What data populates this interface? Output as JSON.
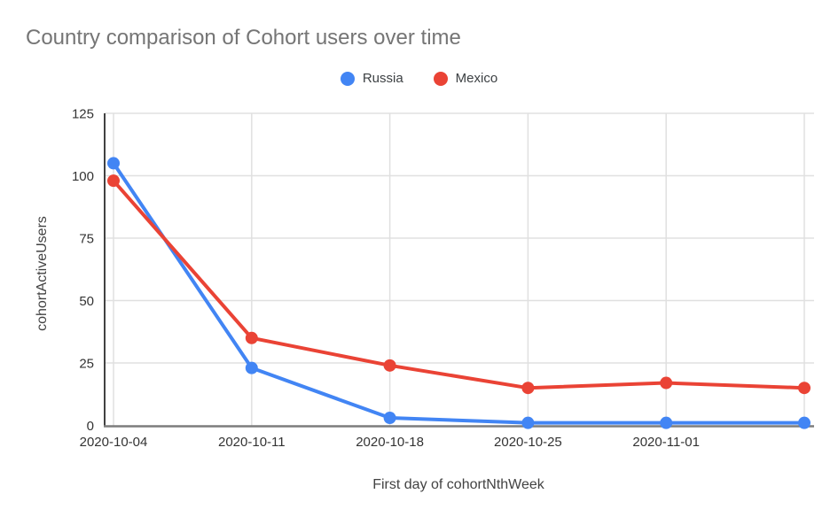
{
  "chart_data": {
    "type": "line",
    "title": "Country comparison of Cohort users over time",
    "xlabel": "First day of cohortNthWeek",
    "ylabel": "cohortActiveUsers",
    "x_tick_labels": [
      "2020-10-04",
      "2020-10-11",
      "2020-10-18",
      "2020-10-25",
      "2020-11-01",
      ""
    ],
    "series": [
      {
        "name": "Russia",
        "color": "#4285f4",
        "values": [
          105,
          23,
          3,
          1,
          1,
          1
        ]
      },
      {
        "name": "Mexico",
        "color": "#ea4335",
        "values": [
          98,
          35,
          24,
          15,
          17,
          15
        ]
      }
    ],
    "ylim": [
      0,
      125
    ],
    "yticks": [
      0,
      25,
      50,
      75,
      100,
      125
    ],
    "grid": true,
    "legend_position": "top",
    "colors": {
      "title": "#757575",
      "grid": "#e0e0e0",
      "y_axis_line": "#424242",
      "x_axis_line": "#7d7d7d",
      "tick_label": "#333333",
      "axis_title": "#424242",
      "legend_text": "#3c4043",
      "background": "#ffffff"
    }
  }
}
